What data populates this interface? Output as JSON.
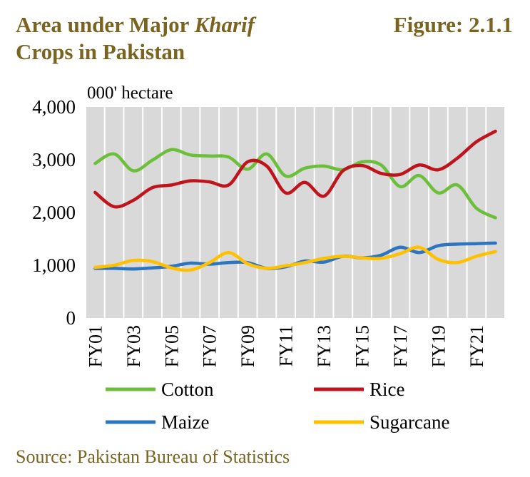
{
  "header": {
    "title_line1_a": "Area under Major ",
    "title_line1_b": "Kharif",
    "title_line2": "Crops in Pakistan",
    "figure_label": "Figure: 2.1.1"
  },
  "source": "Source: Pakistan Bureau of Statistics",
  "chart_data": {
    "type": "line",
    "ylabel": "000' hectare",
    "ylim": [
      0,
      4000
    ],
    "yticks": [
      0,
      1000,
      2000,
      3000,
      4000
    ],
    "ytick_labels": [
      "0",
      "1,000",
      "2,000",
      "3,000",
      "4,000"
    ],
    "x": [
      "FY01",
      "FY02",
      "FY03",
      "FY04",
      "FY05",
      "FY06",
      "FY07",
      "FY08",
      "FY09",
      "FY10",
      "FY11",
      "FY12",
      "FY13",
      "FY14",
      "FY15",
      "FY16",
      "FY17",
      "FY18",
      "FY19",
      "FY20",
      "FY21",
      "FY22"
    ],
    "xtick_labels": [
      "FY01",
      "FY03",
      "FY05",
      "FY07",
      "FY09",
      "FY11",
      "FY13",
      "FY15",
      "FY17",
      "FY19",
      "FY21"
    ],
    "grid": true,
    "plot_background": "#d9d9d9",
    "legend_position": "bottom",
    "series": [
      {
        "name": "Cotton",
        "color": "#6cbf3a",
        "values": [
          2930,
          3110,
          2790,
          2990,
          3190,
          3090,
          3070,
          3050,
          2820,
          3110,
          2690,
          2840,
          2880,
          2810,
          2960,
          2900,
          2490,
          2700,
          2370,
          2520,
          2080,
          1900
        ]
      },
      {
        "name": "Rice",
        "color": "#c0141c",
        "values": [
          2380,
          2110,
          2230,
          2470,
          2520,
          2600,
          2580,
          2520,
          2960,
          2880,
          2370,
          2570,
          2310,
          2790,
          2890,
          2740,
          2720,
          2900,
          2810,
          3030,
          3340,
          3540
        ]
      },
      {
        "name": "Maize",
        "color": "#2e75c0",
        "values": [
          940,
          940,
          930,
          950,
          980,
          1040,
          1020,
          1050,
          1050,
          940,
          970,
          1080,
          1060,
          1170,
          1140,
          1190,
          1340,
          1240,
          1370,
          1400,
          1410,
          1420
        ]
      },
      {
        "name": "Sugarcane",
        "color": "#ffc000",
        "values": [
          960,
          1000,
          1090,
          1070,
          950,
          910,
          1050,
          1240,
          1030,
          940,
          990,
          1050,
          1130,
          1170,
          1140,
          1130,
          1220,
          1340,
          1110,
          1050,
          1170,
          1260
        ]
      }
    ]
  }
}
